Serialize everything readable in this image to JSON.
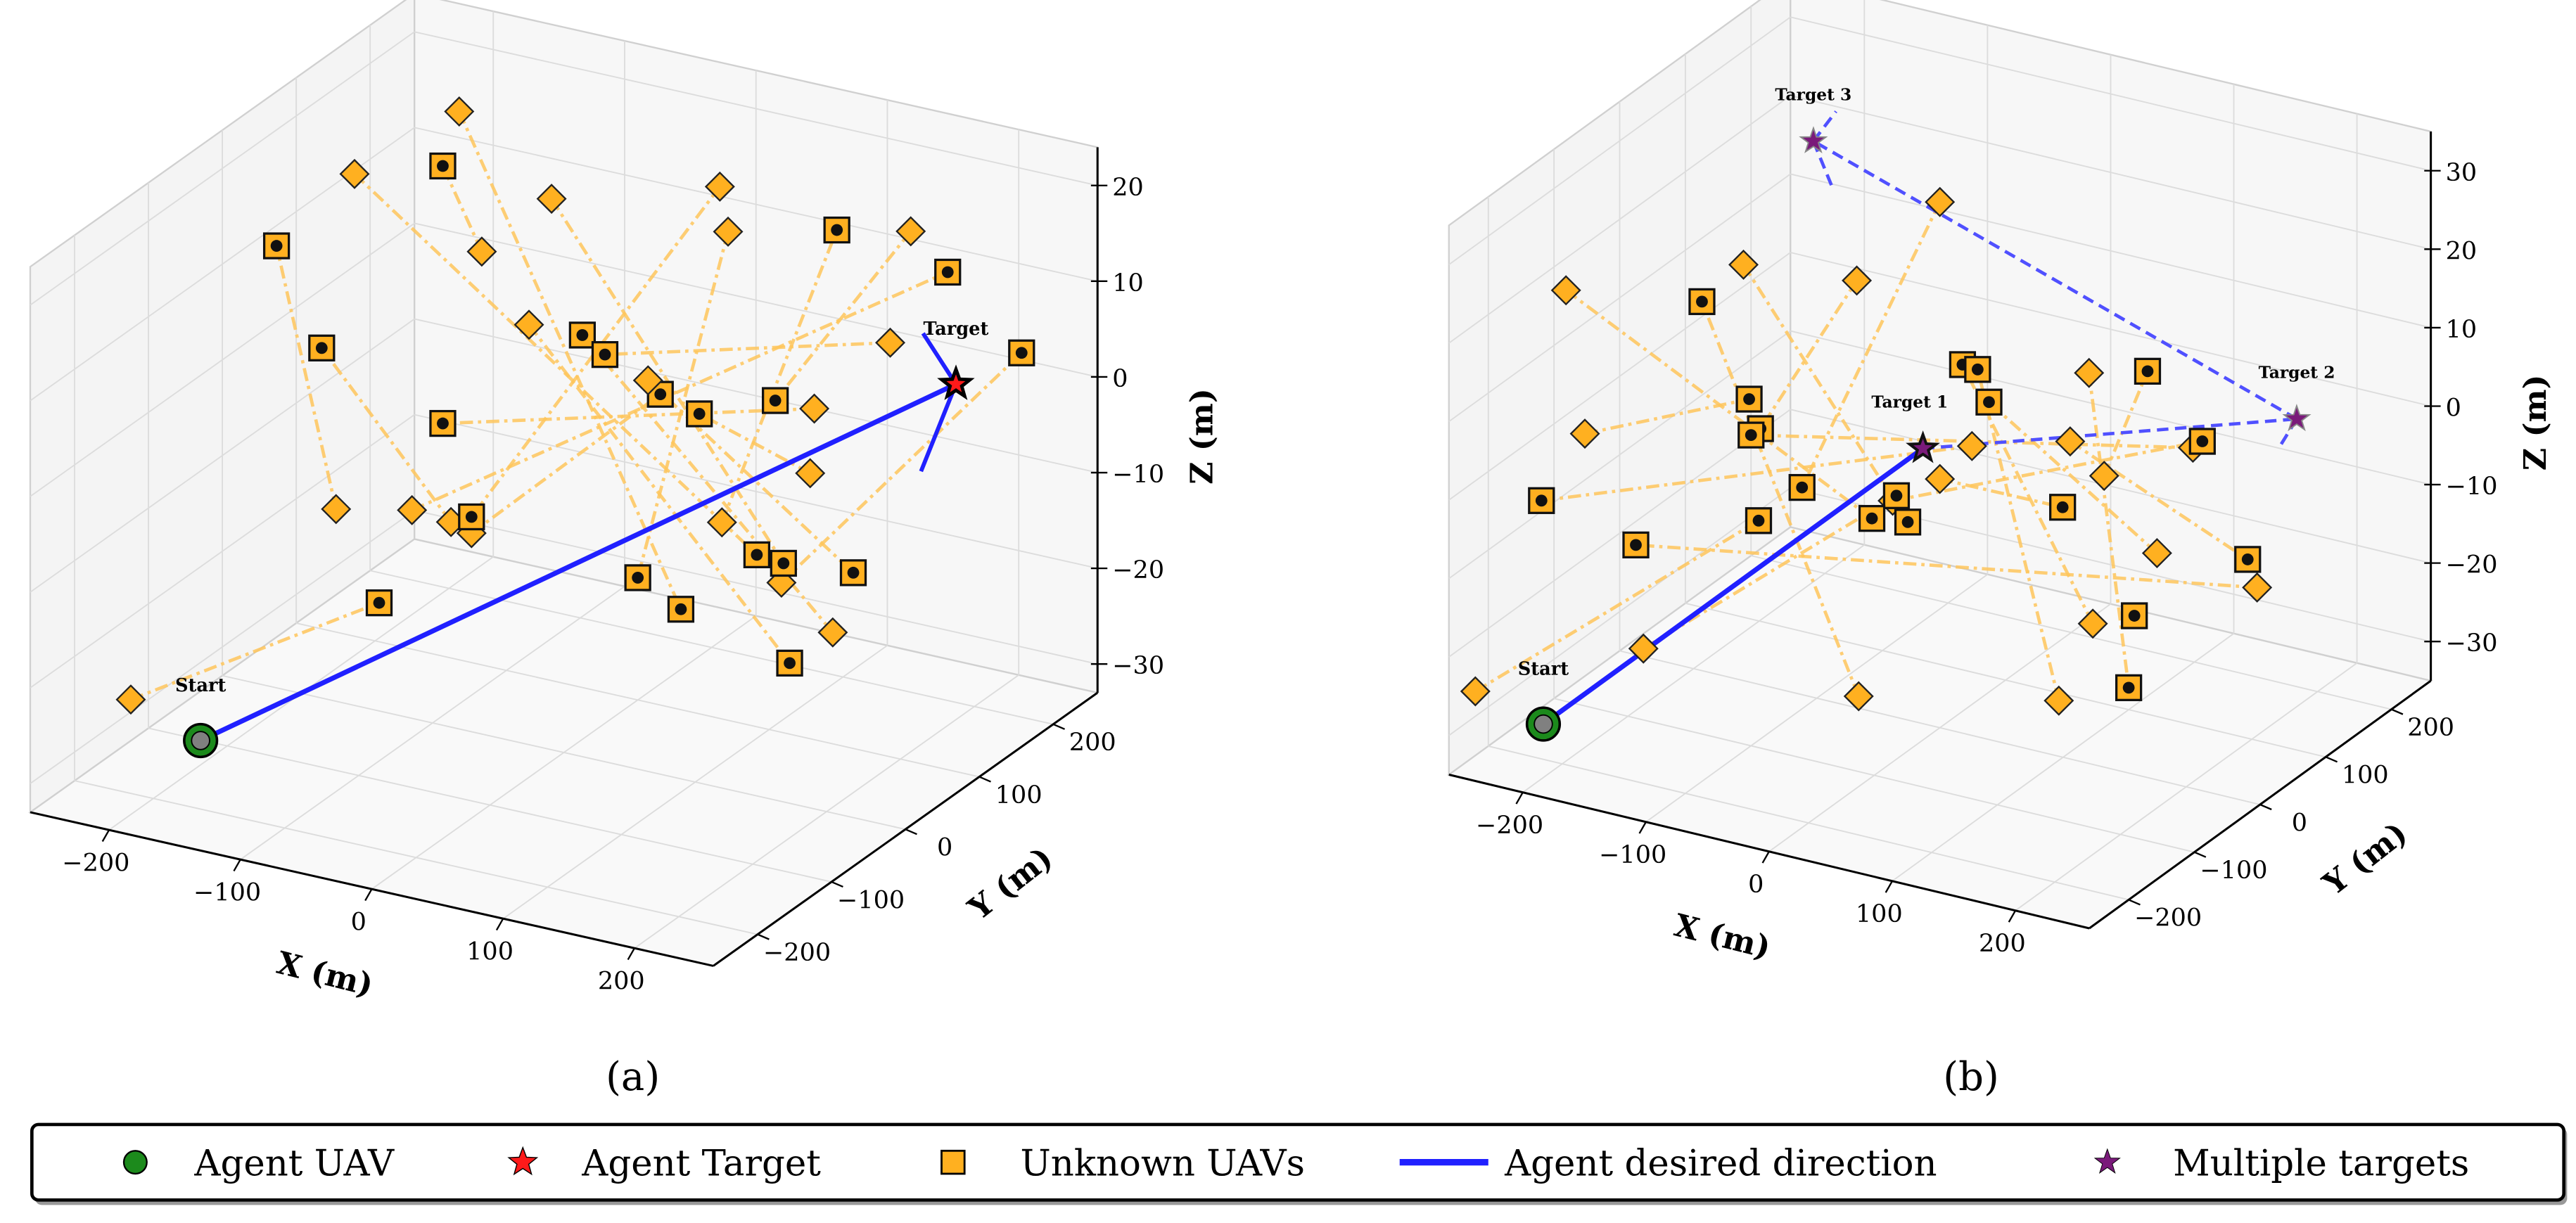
{
  "colors": {
    "agent_uav": "#1c8a1c",
    "agent_inner": "#808080",
    "agent_target": "#ff1a1a",
    "unknown_uav": "#ffb020",
    "trajectory": "#ffc65c",
    "direction": "#2020ff",
    "multi_target": "#7a1a7a",
    "pane": "#f2f2f2",
    "grid": "#dcdcdc"
  },
  "legend": {
    "items": [
      {
        "label": "Agent UAV",
        "icon": "green-circle"
      },
      {
        "label": "Agent Target",
        "icon": "red-star"
      },
      {
        "label": "Unknown UAVs",
        "icon": "orange-square"
      },
      {
        "label": "Agent desired direction",
        "icon": "blue-line"
      },
      {
        "label": "Multiple targets",
        "icon": "purple-star"
      }
    ]
  },
  "chart_data": [
    {
      "type": "scatter3d",
      "panel_label": "(a)",
      "xlabel": "X (m)",
      "ylabel": "Y (m)",
      "zlabel": "Z (m)",
      "xlim": [
        -260,
        260
      ],
      "ylim": [
        -260,
        260
      ],
      "zlim": [
        -33,
        24
      ],
      "xticks": [
        -200,
        -100,
        0,
        100,
        200
      ],
      "yticks": [
        -200,
        -100,
        0,
        100,
        200
      ],
      "zticks": [
        -30,
        -20,
        -10,
        0,
        10,
        20
      ],
      "grid": true,
      "agent": {
        "label": "Start",
        "position": [
          -177,
          -177,
          -27.5
        ]
      },
      "targets": [
        {
          "label": "Target",
          "position": [
            191,
            191,
            0.9
          ]
        }
      ],
      "direction_branches": [
        [
          175,
          175,
          6.6
        ],
        [
          174,
          174,
          -7.8
        ]
      ],
      "dashed_path": [],
      "unknown_uavs": [
        {
          "start": [
            -40,
            -40,
            20.3
          ],
          "current": [
            -59,
            -59,
            29.7
          ]
        },
        {
          "start": [
            -111,
            -111,
            -4.9
          ],
          "current": [
            -140,
            -140,
            23.3
          ]
        },
        {
          "start": [
            -55,
            -55,
            -7.6
          ],
          "current": [
            -118,
            -118,
            12.1
          ]
        },
        {
          "start": [
            77,
            77,
            -10.8
          ],
          "current": [
            133,
            133,
            18.4
          ]
        },
        {
          "start": [
            -74,
            -74,
            -5.9
          ],
          "current": [
            187,
            187,
            12.7
          ]
        },
        {
          "start": [
            131,
            131,
            -23.6
          ],
          "current": [
            9,
            9,
            10.4
          ]
        },
        {
          "start": [
            159,
            159,
            6.0
          ],
          "current": [
            20,
            20,
            8.1
          ]
        },
        {
          "start": [
            -45,
            -45,
            -9.0
          ],
          "current": [
            47,
            47,
            3.3
          ]
        },
        {
          "start": [
            120,
            120,
            -6.7
          ],
          "current": [
            66,
            66,
            0.8
          ]
        },
        {
          "start": [
            169,
            169,
            17.4
          ],
          "current": [
            103,
            103,
            1.3
          ]
        },
        {
          "start": [
            106,
            106,
            -17.8
          ],
          "current": [
            223,
            223,
            3.4
          ]
        },
        {
          "start": [
            122,
            122,
            0.0
          ],
          "current": [
            -59,
            -59,
            2.8
          ]
        },
        {
          "start": [
            76,
            76,
            24.3
          ],
          "current": [
            -45,
            -45,
            -7.3
          ]
        },
        {
          "start": [
            -211,
            -211,
            -22.4
          ],
          "current": [
            -90,
            -90,
            -15.2
          ]
        },
        {
          "start": [
            80,
            80,
            19.5
          ],
          "current": [
            36,
            36,
            -15.6
          ]
        },
        {
          "start": [
            -51,
            -51,
            35.2
          ],
          "current": [
            57,
            57,
            -19.4
          ]
        },
        {
          "start": [
            -102,
            -102,
            29.9
          ],
          "current": [
            94,
            94,
            -14.6
          ]
        },
        {
          "start": [
            -6,
            -6,
            25.0
          ],
          "current": [
            107,
            107,
            -15.8
          ]
        },
        {
          "start": [
            41,
            41,
            4.9
          ],
          "current": [
            141,
            141,
            -17.6
          ]
        },
        {
          "start": [
            -17,
            -17,
            12.1
          ],
          "current": [
            110,
            110,
            -26.3
          ]
        }
      ]
    },
    {
      "type": "scatter3d",
      "panel_label": "(b)",
      "xlabel": "X (m)",
      "ylabel": "Y (m)",
      "zlabel": "Z (m)",
      "xlim": [
        -260,
        260
      ],
      "ylim": [
        -260,
        260
      ],
      "zlim": [
        -35,
        35
      ],
      "xticks": [
        -200,
        -100,
        0,
        100,
        200
      ],
      "yticks": [
        -200,
        -100,
        0,
        100,
        200
      ],
      "zticks": [
        -30,
        -20,
        -10,
        0,
        10,
        20,
        30
      ],
      "grid": true,
      "agent": {
        "label": "Start",
        "position": [
          -210,
          -210,
          -29.7
        ]
      },
      "targets": [
        {
          "label": "Target 1",
          "position": [
            -9,
            -9,
            0.8
          ]
        },
        {
          "label": "Target 2",
          "position": [
            189,
            189,
            0.0
          ]
        },
        {
          "label": "Target 3",
          "position": [
            -67,
            -67,
            41.3
          ]
        }
      ],
      "direction_branches": [],
      "dashed_path": [
        [
          -9,
          -9,
          0.8
        ],
        [
          189,
          189,
          0.0
        ],
        [
          -67,
          -67,
          41.3
        ]
      ],
      "dashed_stubs": [
        [
          [
            -67,
            -67,
            41.3
          ],
          [
            -55,
            -55,
            44.8
          ]
        ],
        [
          [
            -67,
            -67,
            41.3
          ],
          [
            -57,
            -57,
            35.2
          ]
        ],
        [
          [
            189,
            189,
            0.0
          ],
          [
            180,
            180,
            -3.3
          ]
        ]
      ],
      "unknown_uavs": [
        {
          "start": [
            -43,
            -43,
            -30.0
          ],
          "current": [
            -126,
            -126,
            22.2
          ]
        },
        {
          "start": [
            81,
            81,
            -23.6
          ],
          "current": [
            12,
            12,
            11.0
          ]
        },
        {
          "start": [
            63,
            63,
            -33.0
          ],
          "current": [
            20,
            20,
            10.2
          ]
        },
        {
          "start": [
            87,
            87,
            -4.9
          ],
          "current": [
            110,
            110,
            7.9
          ]
        },
        {
          "start": [
            -188,
            -188,
            6.8
          ],
          "current": [
            -101,
            -101,
            9.2
          ]
        },
        {
          "start": [
            115,
            115,
            -15.4
          ],
          "current": [
            26,
            26,
            5.9
          ]
        },
        {
          "start": [
            -44,
            -44,
            23.0
          ],
          "current": [
            -95,
            -95,
            5.3
          ]
        },
        {
          "start": [
            134,
            134,
            -2.4
          ],
          "current": [
            -100,
            -100,
            4.6
          ]
        },
        {
          "start": [
            -25,
            -25,
            -5.5
          ],
          "current": [
            139,
            139,
            -1.7
          ]
        },
        {
          "start": [
            17,
            17,
            0.5
          ],
          "current": [
            -211,
            -211,
            -1.2
          ]
        },
        {
          "start": [
            0,
            0,
            32.0
          ],
          "current": [
            -73,
            -73,
            -2.7
          ]
        },
        {
          "start": [
            -157,
            -157,
            -21.3
          ],
          "current": [
            -23,
            -23,
            -4.9
          ]
        },
        {
          "start": [
            -246,
            -246,
            -24.7
          ],
          "current": [
            -96,
            -96,
            -6.4
          ]
        },
        {
          "start": [
            -198,
            -198,
            25.3
          ],
          "current": [
            -36,
            -36,
            -7.5
          ]
        },
        {
          "start": [
            -104,
            -104,
            26.4
          ],
          "current": [
            -17,
            -17,
            -8.4
          ]
        },
        {
          "start": [
            168,
            168,
            -21.0
          ],
          "current": [
            -161,
            -161,
            -8.0
          ]
        },
        {
          "start": [
            0,
            0,
            -3.3
          ],
          "current": [
            65,
            65,
            -8.4
          ]
        },
        {
          "start": [
            69,
            69,
            -0.1
          ],
          "current": [
            163,
            163,
            -17.3
          ]
        },
        {
          "start": null,
          "current": [
            103,
            103,
            -23.1
          ]
        },
        {
          "start": [
            79,
            79,
            8.4
          ],
          "current": [
            100,
            100,
            -32.2
          ]
        }
      ]
    }
  ]
}
